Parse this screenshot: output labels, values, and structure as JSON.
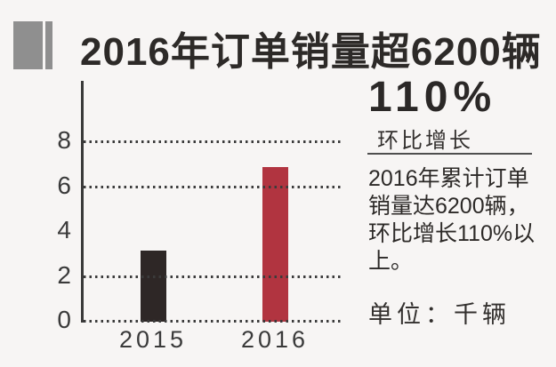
{
  "header": {
    "title": "2016年订单销量超6200辆"
  },
  "highlight": {
    "value": "110%",
    "label": "环比增长"
  },
  "panel": {
    "description_lines": [
      "2016年累计订单",
      "销量达6200辆，",
      "环比增长110%以",
      "上。"
    ],
    "unit_label": "单位：千辆"
  },
  "colors": {
    "background": "#f7f5f4",
    "bar_2015": "#2e2726",
    "bar_2016": "#b13440",
    "axis": "#3a3a3a",
    "marker_gray": "#8f8f8f",
    "text": "#2d2a28"
  },
  "chart_data": {
    "type": "bar",
    "title": "2016年订单销量超6200辆",
    "categories": [
      "2015",
      "2016"
    ],
    "values": [
      3.1,
      6.8
    ],
    "bar_colors": [
      "#2e2726",
      "#b13440"
    ],
    "yticks": [
      8,
      6,
      4,
      2,
      0
    ],
    "gridline_values": [
      8,
      6,
      2,
      0
    ],
    "ylim": [
      0,
      10.6
    ],
    "ylabel": "",
    "xlabel": "",
    "unit": "千辆",
    "grid": "dotted-horizontal",
    "legend": "none"
  }
}
